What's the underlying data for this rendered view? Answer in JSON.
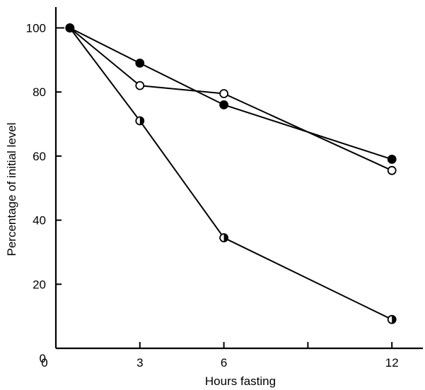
{
  "chart_data": {
    "type": "line",
    "title": "",
    "xlabel": "Hours fasting",
    "ylabel": "Percentage of initial level",
    "xlim": [
      0,
      13
    ],
    "ylim": [
      0,
      105
    ],
    "x_ticks": [
      0,
      3,
      6,
      9,
      12
    ],
    "x_tick_labels": [
      "0",
      "3",
      "6",
      "",
      "12"
    ],
    "y_ticks": [
      0,
      20,
      40,
      60,
      80,
      100
    ],
    "y_tick_labels": [
      "0",
      "20",
      "40",
      "60",
      "80",
      "100"
    ],
    "grid": false,
    "legend": "none",
    "series": [
      {
        "marker": "filled-circle",
        "x": [
          0.5,
          3,
          6,
          12
        ],
        "values": [
          100,
          89,
          76,
          59
        ]
      },
      {
        "marker": "open-circle",
        "x": [
          0.5,
          3,
          6,
          12
        ],
        "values": [
          100,
          82,
          79.5,
          55.5
        ]
      },
      {
        "marker": "half-filled-circle",
        "x": [
          0.5,
          3,
          6,
          12
        ],
        "values": [
          100,
          71,
          34.5,
          9
        ]
      }
    ]
  }
}
